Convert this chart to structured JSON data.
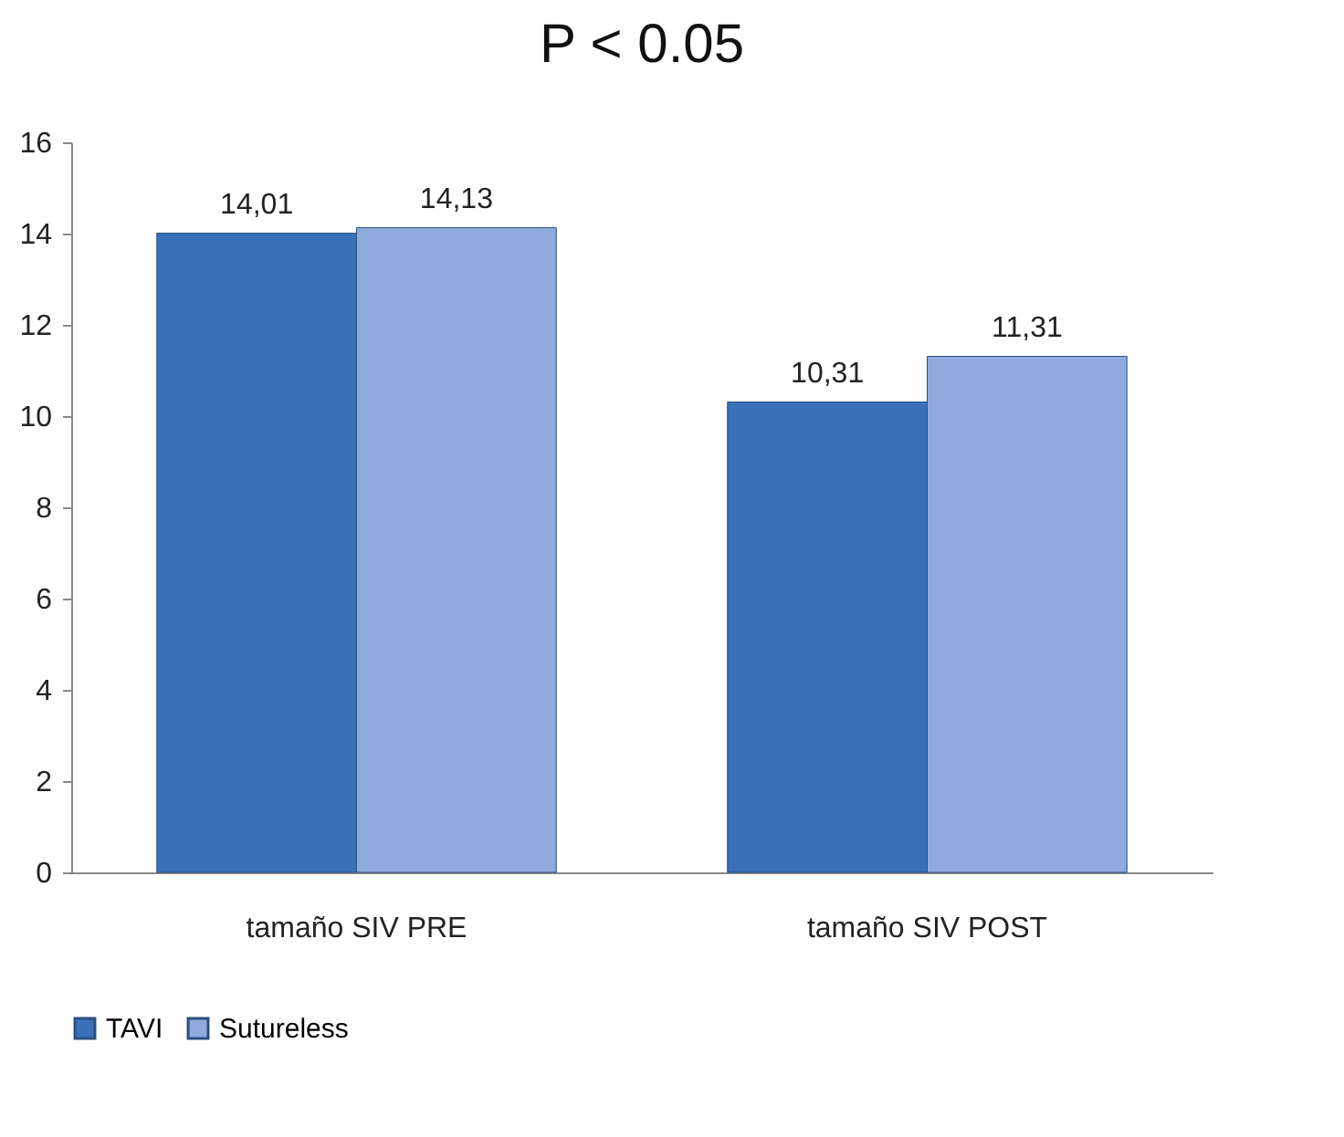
{
  "chart_data": {
    "type": "bar",
    "title": "P < 0.05",
    "categories": [
      "tamaño SIV PRE",
      "tamaño SIV POST"
    ],
    "series": [
      {
        "name": "TAVI",
        "color": "#3a70b8",
        "values": [
          14.01,
          10.31
        ],
        "value_labels": [
          "14,01",
          "10,31"
        ]
      },
      {
        "name": "Sutureless",
        "color": "#8eabdc",
        "values": [
          14.13,
          11.31
        ],
        "value_labels": [
          "14,13",
          "11,31"
        ]
      }
    ],
    "ylim": [
      0,
      16
    ],
    "yticks": [
      0,
      2,
      4,
      6,
      8,
      10,
      12,
      14,
      16
    ],
    "grid": false,
    "legend": "bottom"
  }
}
